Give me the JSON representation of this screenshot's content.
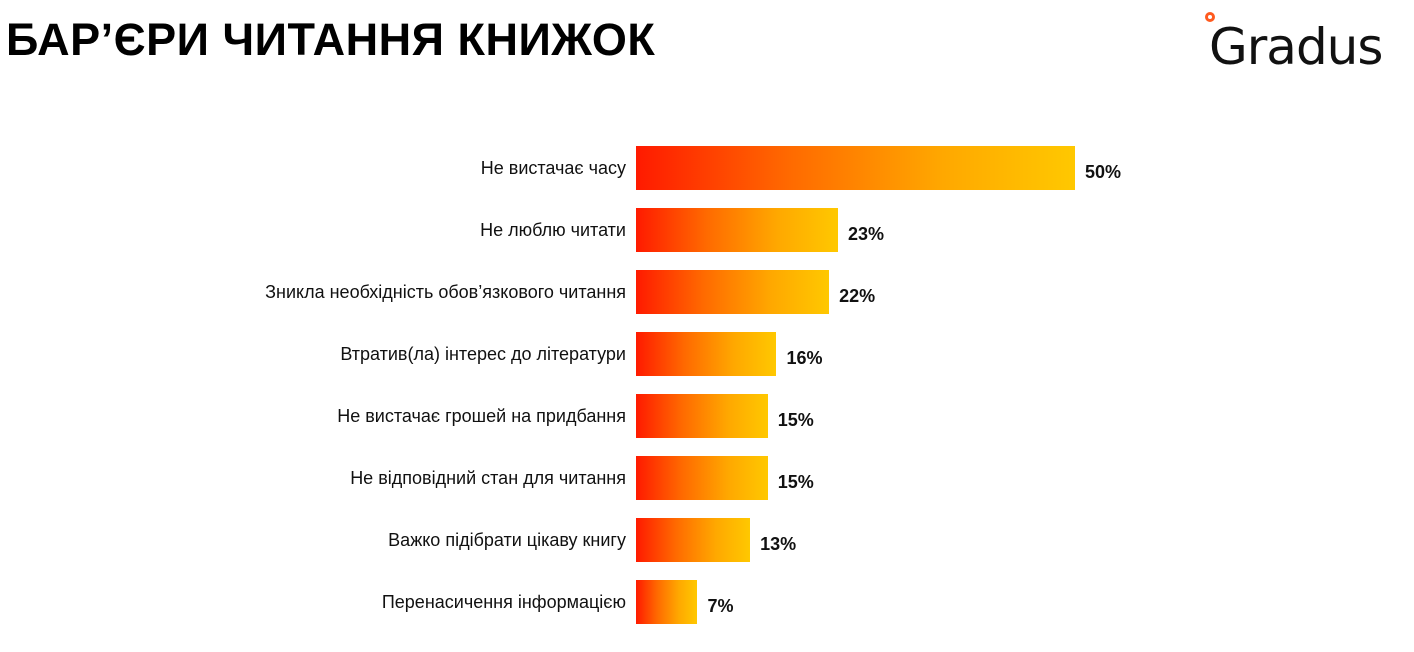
{
  "header": {
    "title": "БАР’ЄРИ ЧИТАННЯ КНИЖОК",
    "logo": "Gradus"
  },
  "colors": {
    "bar_gradient_start": "#ff1a00",
    "bar_gradient_end": "#ffc800",
    "logo_dot": "#ff5a1f"
  },
  "chart_data": {
    "type": "bar",
    "orientation": "horizontal",
    "title": "БАР’ЄРИ ЧИТАННЯ КНИЖОК",
    "categories": [
      "Не вистачає часу",
      "Не люблю читати",
      "Зникла необхідність обов’язкового читання",
      "Втратив(ла) інтерес до літератури",
      "Не вистачає грошей на придбання",
      "Не відповідний стан для читання",
      "Важко підібрати цікаву книгу",
      "Перенасичення інформацією"
    ],
    "values": [
      50,
      23,
      22,
      16,
      15,
      15,
      13,
      7
    ],
    "value_labels": [
      "50%",
      "23%",
      "22%",
      "16%",
      "15%",
      "15%",
      "13%",
      "7%"
    ],
    "xlabel": "",
    "ylabel": "",
    "grid": false,
    "legend": "none",
    "unit": "%"
  }
}
